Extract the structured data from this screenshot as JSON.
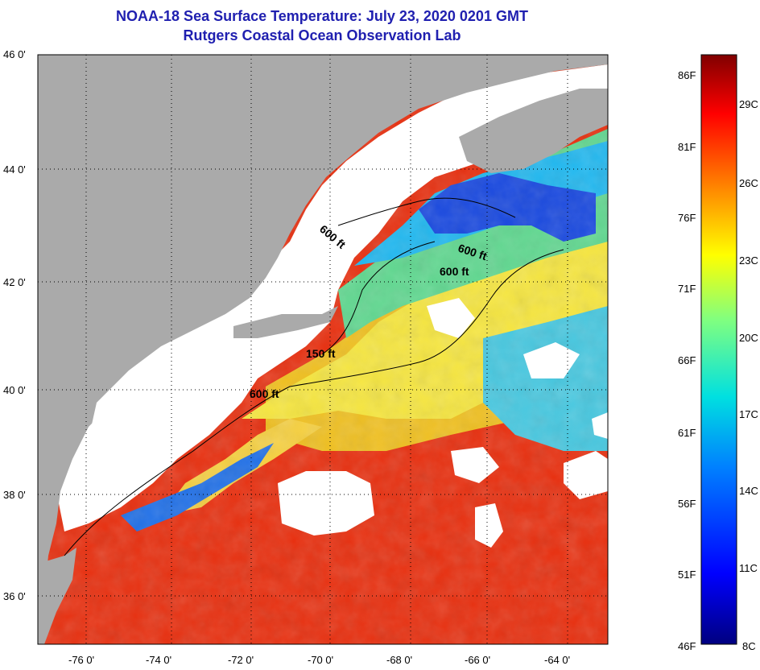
{
  "header": {
    "title": "NOAA-18 Sea Surface Temperature:  July 23, 2020 0201 GMT",
    "subtitle": "Rutgers Coastal Ocean Observation Lab"
  },
  "map": {
    "lat_ticks": [
      "46 0'",
      "44 0'",
      "42 0'",
      "40 0'",
      "38 0'",
      "36 0'"
    ],
    "lon_ticks": [
      "-76 0'",
      "-74 0'",
      "-72 0'",
      "-70 0'",
      "-68 0'",
      "-66 0'",
      "-64 0'"
    ],
    "contours": [
      "600 ft",
      "600 ft",
      "600 ft",
      "150 ft",
      "600 ft"
    ],
    "colors": {
      "land": "#aaaaaa",
      "cloud": "#ffffff",
      "warm": "#e83010",
      "cold": "#1848e0"
    }
  },
  "colorbar": {
    "fahrenheit": [
      "86F",
      "81F",
      "76F",
      "71F",
      "66F",
      "61F",
      "56F",
      "51F",
      "46F"
    ],
    "celsius": [
      "29C",
      "26C",
      "23C",
      "20C",
      "17C",
      "14C",
      "11C",
      "8C"
    ]
  }
}
